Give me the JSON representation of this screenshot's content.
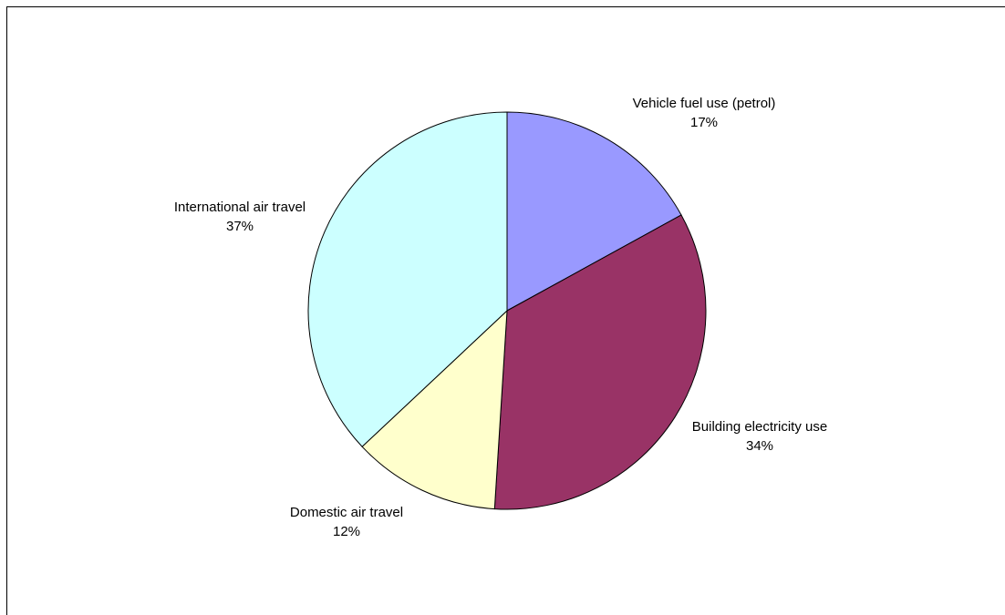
{
  "chart_data": {
    "type": "pie",
    "title": "",
    "slices": [
      {
        "label": "Vehicle fuel use (petrol)",
        "value": 17,
        "percent_label": "17%",
        "color": "#9999ff"
      },
      {
        "label": "Building electricity use",
        "value": 34,
        "percent_label": "34%",
        "color": "#993366"
      },
      {
        "label": "Domestic air travel",
        "value": 12,
        "percent_label": "12%",
        "color": "#ffffcc"
      },
      {
        "label": "International air travel",
        "value": 37,
        "percent_label": "37%",
        "color": "#ccffff"
      }
    ],
    "start_angle": "12 o'clock",
    "direction": "clockwise",
    "legend": "none"
  }
}
